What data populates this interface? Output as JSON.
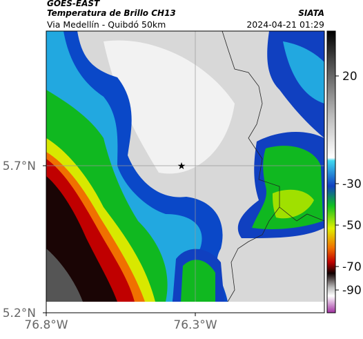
{
  "header": {
    "source": "GOES-EAST",
    "title": "Temperatura de Brillo CH13",
    "org": "SIATA",
    "subtitle": "Via Medellín - Quibdó 50km",
    "datetime": "2024-04-21 01:29"
  },
  "axes": {
    "y_ticks": [
      "5.7°N",
      "5.2°N"
    ],
    "x_ticks": [
      "76.8°W",
      "76.3°W"
    ]
  },
  "colorbar": {
    "ticks": [
      "20",
      "-30",
      "-50",
      "-70",
      "-90"
    ]
  }
}
